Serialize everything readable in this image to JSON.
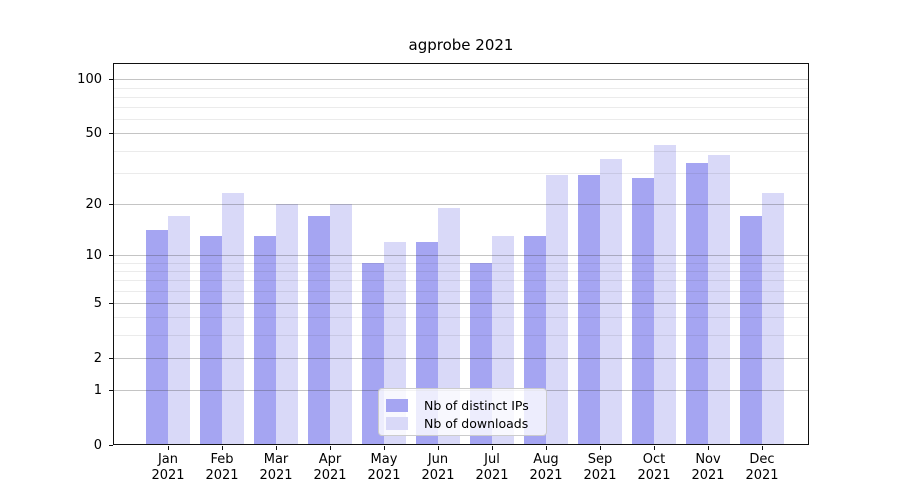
{
  "title": "agprobe 2021",
  "legend": {
    "items": [
      {
        "label": "Nb of distinct IPs",
        "color": "#a5a5f2"
      },
      {
        "label": "Nb of downloads",
        "color": "#d9d9f8"
      }
    ]
  },
  "chart_data": {
    "type": "bar",
    "title": "agprobe 2021",
    "categories": [
      "Jan",
      "Feb",
      "Mar",
      "Apr",
      "May",
      "Jun",
      "Jul",
      "Aug",
      "Sep",
      "Oct",
      "Nov",
      "Dec"
    ],
    "year": "2021",
    "series": [
      {
        "name": "Nb of distinct IPs",
        "color": "#a5a5f2",
        "values": [
          14,
          13,
          13,
          17,
          9,
          12,
          9,
          13,
          29,
          28,
          34,
          17
        ]
      },
      {
        "name": "Nb of downloads",
        "color": "#d9d9f8",
        "values": [
          17,
          23,
          20,
          20,
          12,
          19,
          13,
          29,
          36,
          43,
          38,
          23
        ]
      }
    ],
    "xlabel": "",
    "ylabel": "",
    "yscale": "log1p",
    "y_ticks": [
      0,
      1,
      2,
      5,
      10,
      20,
      50,
      100
    ],
    "y_minor_ticks": [
      3,
      4,
      6,
      7,
      8,
      9,
      30,
      40,
      60,
      70,
      80,
      90
    ],
    "ylim": [
      0,
      123
    ],
    "grid": true,
    "legend_position": "lower center"
  }
}
